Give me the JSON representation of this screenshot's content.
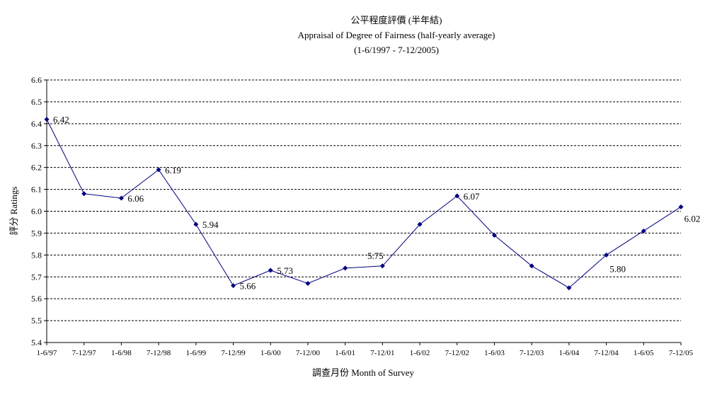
{
  "chart_data": {
    "type": "line",
    "title": "公平程度評價 (半年結)",
    "subtitle": "Appraisal of Degree of Fairness (half-yearly average)",
    "subtitle2": "(1-6/1997 - 7-12/2005)",
    "xlabel": "調查月份 Month of Survey",
    "ylabel": "評分 Ratings",
    "ylim": [
      5.4,
      6.6
    ],
    "yticks": [
      5.4,
      5.5,
      5.6,
      5.7,
      5.8,
      5.9,
      6.0,
      6.1,
      6.2,
      6.3,
      6.4,
      6.5,
      6.6
    ],
    "ytick_labels": [
      "5.4",
      "5.5",
      "5.6",
      "5.7",
      "5.8",
      "5.9",
      "6.0",
      "6.1",
      "6.2",
      "6.3",
      "6.4",
      "6.5",
      "6.6"
    ],
    "grid": true,
    "color": "#000080",
    "categories": [
      "1-6/97",
      "7-12/97",
      "1-6/98",
      "7-12/98",
      "1-6/99",
      "7-12/99",
      "1-6/00",
      "7-12/00",
      "1-6/01",
      "7-12/01",
      "1-6/02",
      "7-12/02",
      "1-6/03",
      "7-12/03",
      "1-6/04",
      "7-12/04",
      "1-6/05",
      "7-12/05"
    ],
    "values": [
      6.42,
      6.08,
      6.06,
      6.19,
      5.94,
      5.66,
      5.73,
      5.67,
      5.74,
      5.75,
      5.94,
      6.07,
      5.89,
      5.75,
      5.65,
      5.8,
      5.91,
      6.02
    ],
    "data_labels": [
      {
        "index": 0,
        "text": "6.42",
        "pos": "right"
      },
      {
        "index": 2,
        "text": "6.06",
        "pos": "right"
      },
      {
        "index": 3,
        "text": "6.19",
        "pos": "right"
      },
      {
        "index": 4,
        "text": "5.94",
        "pos": "right"
      },
      {
        "index": 5,
        "text": "5.66",
        "pos": "right"
      },
      {
        "index": 6,
        "text": "5.73",
        "pos": "right"
      },
      {
        "index": 9,
        "text": "5.75",
        "pos": "above"
      },
      {
        "index": 11,
        "text": "6.07",
        "pos": "right"
      },
      {
        "index": 15,
        "text": "5.80",
        "pos": "below"
      },
      {
        "index": 17,
        "text": "6.02",
        "pos": "below"
      }
    ]
  }
}
